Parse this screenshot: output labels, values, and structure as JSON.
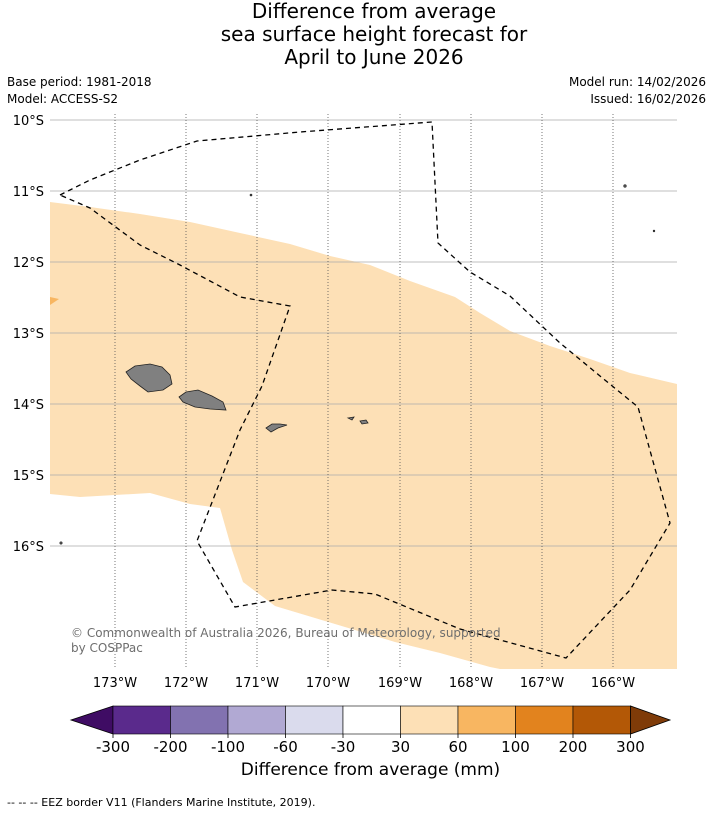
{
  "title": {
    "line1": "Difference from average",
    "line2": "sea surface height forecast for",
    "line3": "April to June 2026"
  },
  "meta": {
    "base_period": "Base period: 1981-2018",
    "model": "Model: ACCESS-S2",
    "model_run": "Model run: 14/02/2026",
    "issued": "Issued: 16/02/2026"
  },
  "map": {
    "lat_ticks": [
      "10°S",
      "11°S",
      "12°S",
      "13°S",
      "14°S",
      "15°S",
      "16°S"
    ],
    "lon_ticks": [
      "173°W",
      "172°W",
      "171°W",
      "170°W",
      "169°W",
      "168°W",
      "167°W",
      "166°W"
    ],
    "anomaly_fill_color": "#fde0b6",
    "accent_fill_color": "#f8b661",
    "land_color": "#808080"
  },
  "copyright": {
    "line1": "© Commonwealth of Australia 2026, Bureau of Meteorology, supported",
    "line2": "by COSPPac"
  },
  "colorbar": {
    "label": "Difference from average (mm)",
    "ticks": [
      "-300",
      "-200",
      "-100",
      "-60",
      "-30",
      "30",
      "60",
      "100",
      "200",
      "300"
    ],
    "colors": [
      "#3f0c64",
      "#5a2a8c",
      "#8272b0",
      "#b1a9d3",
      "#dadbed",
      "#ffffff",
      "#fde0b6",
      "#f8b661",
      "#e2831e",
      "#b35806",
      "#7f3b08"
    ]
  },
  "footer": "-- -- -- EEZ border V11 (Flanders Marine Institute, 2019)."
}
